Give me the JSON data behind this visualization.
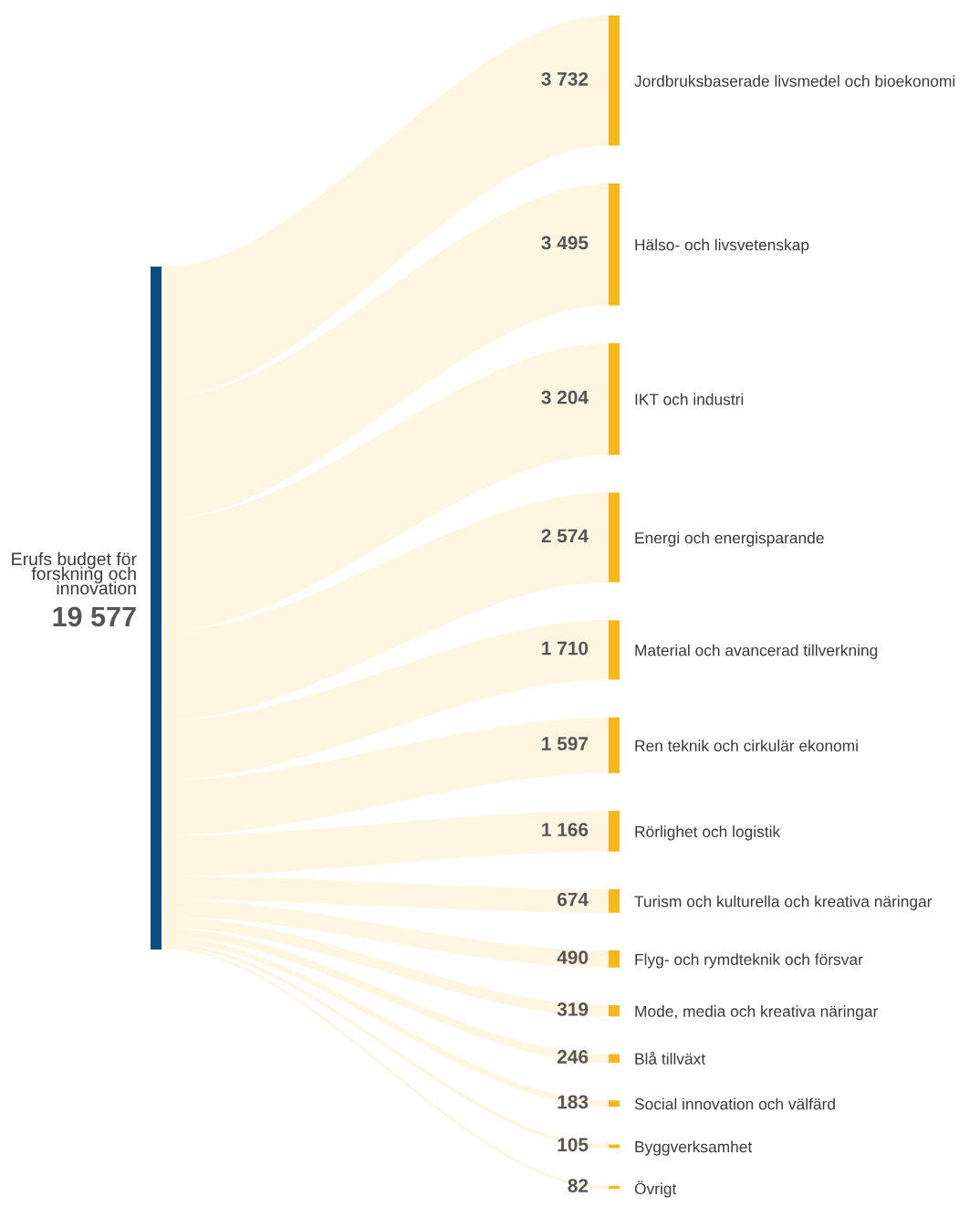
{
  "chart_data": {
    "type": "other",
    "title": "Erufs budget för forskning och innovation",
    "annotations": [
      "19 577"
    ],
    "categories": [
      "Jordbruksbaserade livsmedel och bioekonomi",
      "Hälso- och livsvetenskap",
      "IKT och industri",
      "Energi och energisparande",
      "Material och avancerad tillverkning",
      "Ren teknik och cirkulär ekonomi",
      "Rörlighet och logistik",
      "Turism och kulturella och kreativa näringar",
      "Flyg- och rymdteknik och försvar",
      "Mode, media och kreativa näringar",
      "Blå tillväxt",
      "Social innovation och välfärd",
      "Byggverksamhet",
      "Övrigt"
    ],
    "values": [
      3732,
      3495,
      3204,
      2574,
      1710,
      1597,
      1166,
      674,
      490,
      319,
      246,
      183,
      105,
      82
    ],
    "value_labels": [
      "3 732",
      "3 495",
      "3 204",
      "2 574",
      "1 710",
      "1 597",
      "1 166",
      "674",
      "490",
      "319",
      "246",
      "183",
      "105",
      "82"
    ],
    "color": "#fbb718"
  }
}
